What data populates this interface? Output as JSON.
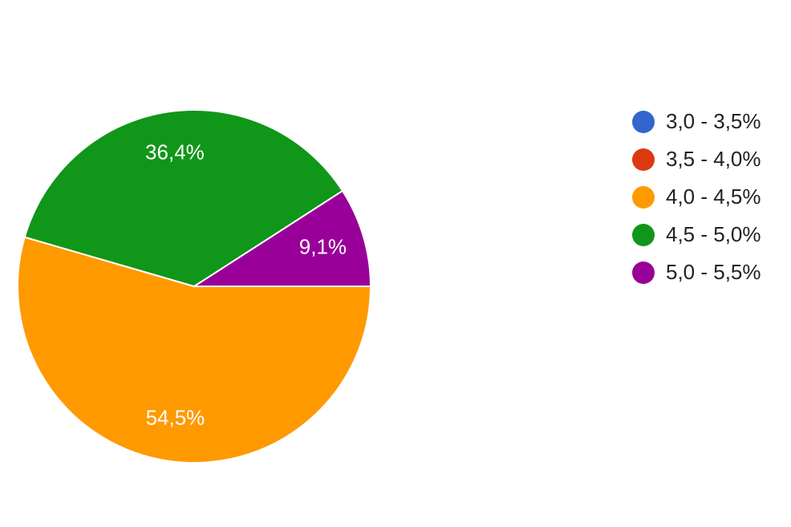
{
  "chart_data": {
    "type": "pie",
    "categories": [
      "3,0 - 3,5%",
      "3,5 - 4,0%",
      "4,0 - 4,5%",
      "4,5 - 5,0%",
      "5,0 - 5,5%"
    ],
    "values": [
      0,
      0,
      54.5,
      36.4,
      9.1
    ],
    "value_labels": [
      null,
      null,
      "54,5%",
      "36,4%",
      "9,1%"
    ],
    "colors": [
      "#3366cc",
      "#dc3912",
      "#ff9900",
      "#109618",
      "#990099"
    ],
    "legend": "right"
  }
}
